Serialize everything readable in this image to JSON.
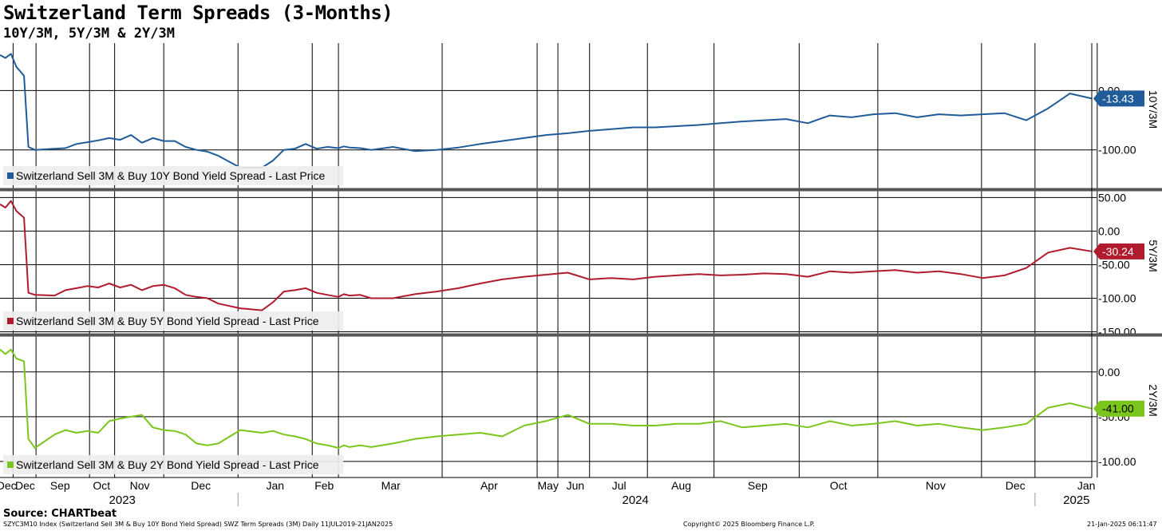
{
  "header": {
    "title": "Switzerland Term Spreads (3-Months)",
    "subtitle": "10Y/3M, 5Y/3M & 2Y/3M"
  },
  "footer": {
    "source": "Source: CHARTbeat",
    "left": "SZYC3M10 Index (Switzerland Sell 3M & Buy 10Y Bond Yield Spread) SWZ Term Spreads (3M)  Daily 11JUL2019-21JAN2025",
    "center": "Copyright© 2025 Bloomberg Finance L.P.",
    "right": "21-Jan-2025 06:11:47"
  },
  "colors": {
    "s10": "#1f5c99",
    "s5": "#b01c2e",
    "s2": "#7ac61c",
    "grid": "#000000",
    "sep": "#555555"
  },
  "chart_data": [
    {
      "type": "line",
      "name": "10Y/3M",
      "legend": "Switzerland Sell 3M & Buy 10Y Bond Yield Spread - Last Price",
      "last_label": "-13.43",
      "yticks": [
        {
          "v": 0,
          "label": "0.00"
        },
        {
          "v": -100,
          "label": "-100.00"
        }
      ],
      "ylim": [
        -165,
        80
      ],
      "x": [
        0,
        0.5,
        1,
        1.5,
        2.2,
        2.6,
        3.2,
        5,
        6,
        7,
        8,
        9,
        10,
        11,
        12,
        13,
        14,
        15,
        16,
        17,
        18,
        19,
        20,
        22,
        24,
        25,
        26,
        27,
        28,
        29,
        30,
        31,
        31.5,
        32,
        33,
        34,
        36,
        38,
        40,
        42,
        44,
        46,
        48,
        50,
        52,
        54,
        56,
        58,
        60,
        62,
        64,
        66,
        68,
        70,
        72,
        74,
        76,
        78,
        80,
        82,
        84,
        86,
        88,
        90,
        92,
        94,
        96,
        98,
        100
      ],
      "values": [
        60,
        55,
        62,
        40,
        25,
        -95,
        -100,
        -98,
        -97,
        -90,
        -87,
        -84,
        -80,
        -83,
        -75,
        -88,
        -80,
        -85,
        -85,
        -95,
        -100,
        -103,
        -110,
        -130,
        -130,
        -118,
        -100,
        -98,
        -90,
        -98,
        -95,
        -97,
        -94,
        -96,
        -97,
        -100,
        -95,
        -102,
        -100,
        -96,
        -90,
        -85,
        -80,
        -75,
        -72,
        -68,
        -65,
        -62,
        -62,
        -60,
        -58,
        -55,
        -52,
        -50,
        -48,
        -55,
        -42,
        -45,
        -40,
        -38,
        -45,
        -40,
        -42,
        -40,
        -38,
        -50,
        -30,
        -5,
        -13.43
      ]
    },
    {
      "type": "line",
      "name": "5Y/3M",
      "legend": "Switzerland Sell 3M & Buy 5Y Bond Yield Spread - Last Price",
      "last_label": "-30.24",
      "yticks": [
        {
          "v": 50,
          "label": "50.00"
        },
        {
          "v": 0,
          "label": "0.00"
        },
        {
          "v": -50,
          "label": "-50.00"
        },
        {
          "v": -100,
          "label": "-100.00"
        },
        {
          "v": -150,
          "label": "-150.00"
        }
      ],
      "ylim": [
        -153,
        60
      ],
      "x": [
        0,
        0.5,
        1,
        1.5,
        2.2,
        2.6,
        3.2,
        5,
        6,
        7,
        8,
        9,
        10,
        11,
        12,
        13,
        14,
        15,
        16,
        17,
        18,
        19,
        20,
        22,
        24,
        25,
        26,
        27,
        28,
        29,
        30,
        31,
        31.5,
        32,
        33,
        34,
        36,
        38,
        40,
        42,
        44,
        46,
        48,
        50,
        52,
        54,
        56,
        58,
        60,
        62,
        64,
        66,
        68,
        70,
        72,
        74,
        76,
        78,
        80,
        82,
        84,
        86,
        88,
        90,
        92,
        94,
        96,
        98,
        100
      ],
      "values": [
        40,
        35,
        45,
        30,
        20,
        -92,
        -95,
        -96,
        -88,
        -85,
        -82,
        -84,
        -78,
        -84,
        -80,
        -88,
        -82,
        -80,
        -85,
        -95,
        -98,
        -100,
        -108,
        -115,
        -118,
        -106,
        -90,
        -88,
        -85,
        -92,
        -95,
        -98,
        -94,
        -96,
        -95,
        -100,
        -100,
        -94,
        -90,
        -85,
        -78,
        -72,
        -68,
        -65,
        -62,
        -72,
        -70,
        -72,
        -68,
        -66,
        -64,
        -66,
        -65,
        -63,
        -64,
        -68,
        -60,
        -62,
        -60,
        -58,
        -62,
        -60,
        -64,
        -70,
        -66,
        -55,
        -32,
        -25,
        -30.24
      ]
    },
    {
      "type": "line",
      "name": "2Y/3M",
      "legend": "Switzerland Sell 3M & Buy 2Y Bond Yield Spread - Last Price",
      "last_label": "-41.00",
      "yticks": [
        {
          "v": 0,
          "label": "0.00"
        },
        {
          "v": -50,
          "label": "-50.00"
        },
        {
          "v": -100,
          "label": "-100.00"
        }
      ],
      "ylim": [
        -118,
        40
      ],
      "x": [
        0,
        0.5,
        1,
        1.5,
        2.2,
        2.6,
        3.2,
        5,
        6,
        7,
        8,
        9,
        10,
        11,
        12,
        13,
        14,
        15,
        16,
        17,
        18,
        19,
        20,
        22,
        24,
        25,
        26,
        27,
        28,
        29,
        30,
        31,
        31.5,
        32,
        33,
        34,
        36,
        38,
        40,
        42,
        44,
        46,
        48,
        50,
        52,
        54,
        56,
        58,
        60,
        62,
        64,
        66,
        68,
        70,
        72,
        74,
        76,
        78,
        80,
        82,
        84,
        86,
        88,
        90,
        92,
        94,
        96,
        98,
        100
      ],
      "values": [
        25,
        20,
        25,
        15,
        12,
        -75,
        -85,
        -70,
        -65,
        -68,
        -66,
        -68,
        -55,
        -52,
        -50,
        -48,
        -62,
        -65,
        -66,
        -70,
        -80,
        -82,
        -80,
        -65,
        -68,
        -66,
        -70,
        -72,
        -75,
        -80,
        -82,
        -85,
        -82,
        -84,
        -82,
        -84,
        -80,
        -75,
        -72,
        -70,
        -68,
        -72,
        -60,
        -55,
        -48,
        -58,
        -58,
        -60,
        -60,
        -58,
        -58,
        -55,
        -62,
        -60,
        -58,
        -62,
        -55,
        -60,
        -58,
        -55,
        -60,
        -58,
        -62,
        -65,
        -62,
        -58,
        -40,
        -35,
        -41.0
      ]
    }
  ],
  "months": [
    {
      "label": "Dec",
      "x": 0.6
    },
    {
      "label": "Dec",
      "x": 2.3
    },
    {
      "label": "Sep",
      "x": 5.5
    },
    {
      "label": "Oct",
      "x": 9.3
    },
    {
      "label": "Nov",
      "x": 12.8
    },
    {
      "label": "Dec",
      "x": 18.4
    },
    {
      "label": "Jan",
      "x": 25.2
    },
    {
      "label": "Feb",
      "x": 29.7
    },
    {
      "label": "Mar",
      "x": 35.8
    },
    {
      "label": "Apr",
      "x": 44.8
    },
    {
      "label": "May",
      "x": 50.2
    },
    {
      "label": "Jun",
      "x": 52.7
    },
    {
      "label": "Jul",
      "x": 56.7
    },
    {
      "label": "Aug",
      "x": 62.4
    },
    {
      "label": "Sep",
      "x": 69.4
    },
    {
      "label": "Oct",
      "x": 76.8
    },
    {
      "label": "Nov",
      "x": 85.7
    },
    {
      "label": "Dec",
      "x": 93.0
    },
    {
      "label": "Jan",
      "x": 99.5
    }
  ],
  "years": [
    {
      "label": "2023",
      "x": 11.2
    },
    {
      "label": "2024",
      "x": 58.2
    },
    {
      "label": "2025",
      "x": 98.6
    }
  ],
  "vgrid": [
    1.2,
    3.3,
    8.2,
    10.5,
    15.0,
    21.8,
    28.6,
    31.0,
    40.5,
    49.2,
    51.1,
    54.0,
    59.3,
    65.4,
    73.2,
    80.4,
    89.9,
    94.8,
    100.5
  ],
  "year_dividers": [
    21.8,
    94.8
  ]
}
